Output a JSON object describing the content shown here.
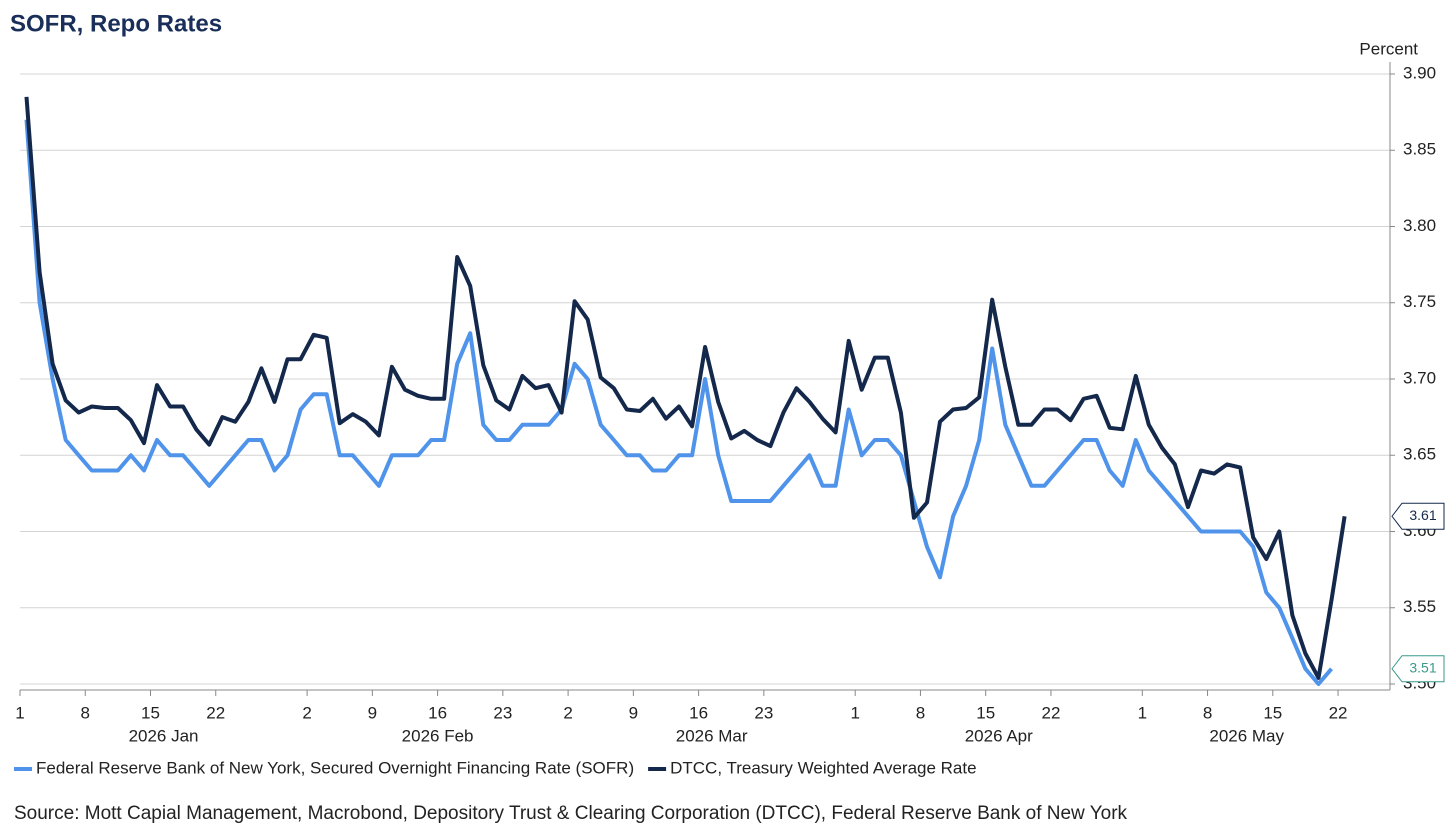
{
  "chart_data": {
    "type": "line",
    "title": "SOFR, Repo Rates",
    "y_label": "Percent",
    "source": "Source: Mott Capial Management, Macrobond, Depository Trust & Clearing Corporation (DTCC), Federal Reserve Bank of New York",
    "x": [
      "2026-01-01",
      "2026-01-02",
      "2026-01-05",
      "2026-01-06",
      "2026-01-07",
      "2026-01-08",
      "2026-01-09",
      "2026-01-12",
      "2026-01-13",
      "2026-01-14",
      "2026-01-15",
      "2026-01-16",
      "2026-01-19",
      "2026-01-20",
      "2026-01-21",
      "2026-01-22",
      "2026-01-23",
      "2026-01-26",
      "2026-01-27",
      "2026-01-28",
      "2026-01-29",
      "2026-01-30",
      "2026-02-02",
      "2026-02-03",
      "2026-02-04",
      "2026-02-05",
      "2026-02-06",
      "2026-02-09",
      "2026-02-10",
      "2026-02-11",
      "2026-02-12",
      "2026-02-13",
      "2026-02-16",
      "2026-02-17",
      "2026-02-18",
      "2026-02-19",
      "2026-02-20",
      "2026-02-23",
      "2026-02-24",
      "2026-02-25",
      "2026-02-26",
      "2026-02-27",
      "2026-03-02",
      "2026-03-03",
      "2026-03-04",
      "2026-03-05",
      "2026-03-06",
      "2026-03-09",
      "2026-03-10",
      "2026-03-11",
      "2026-03-12",
      "2026-03-13",
      "2026-03-16",
      "2026-03-17",
      "2026-03-18",
      "2026-03-19",
      "2026-03-20",
      "2026-03-23",
      "2026-03-24",
      "2026-03-25",
      "2026-03-26",
      "2026-03-27",
      "2026-03-30",
      "2026-03-31",
      "2026-04-01",
      "2026-04-02",
      "2026-04-03",
      "2026-04-06",
      "2026-04-07",
      "2026-04-08",
      "2026-04-09",
      "2026-04-10",
      "2026-04-13",
      "2026-04-14",
      "2026-04-15",
      "2026-04-16",
      "2026-04-17",
      "2026-04-20",
      "2026-04-21",
      "2026-04-22",
      "2026-04-23",
      "2026-04-24",
      "2026-04-27",
      "2026-04-28",
      "2026-04-29",
      "2026-04-30",
      "2026-05-01",
      "2026-05-04",
      "2026-05-05",
      "2026-05-06",
      "2026-05-07",
      "2026-05-08",
      "2026-05-11",
      "2026-05-12",
      "2026-05-13",
      "2026-05-14",
      "2026-05-15",
      "2026-05-18",
      "2026-05-19",
      "2026-05-20",
      "2026-05-21",
      "2026-05-22"
    ],
    "series": [
      {
        "name": "Federal Reserve Bank of New York, Secured Overnight Financing Rate (SOFR)",
        "color": "#4f94ea",
        "values": [
          3.87,
          3.75,
          3.7,
          3.66,
          3.65,
          3.64,
          3.64,
          3.64,
          3.65,
          3.64,
          3.66,
          3.65,
          3.65,
          3.64,
          3.63,
          3.64,
          3.65,
          3.66,
          3.66,
          3.64,
          3.65,
          3.68,
          3.69,
          3.69,
          3.65,
          3.65,
          3.64,
          3.63,
          3.65,
          3.65,
          3.65,
          3.66,
          3.66,
          3.71,
          3.73,
          3.67,
          3.66,
          3.66,
          3.67,
          3.67,
          3.67,
          3.68,
          3.71,
          3.7,
          3.67,
          3.66,
          3.65,
          3.65,
          3.64,
          3.64,
          3.65,
          3.65,
          3.7,
          3.65,
          3.62,
          3.62,
          3.62,
          3.62,
          3.63,
          3.64,
          3.65,
          3.63,
          3.63,
          3.68,
          3.65,
          3.66,
          3.66,
          3.65,
          3.62,
          3.59,
          3.57,
          3.61,
          3.63,
          3.66,
          3.72,
          3.67,
          3.65,
          3.63,
          3.63,
          3.64,
          3.65,
          3.66,
          3.66,
          3.64,
          3.63,
          3.66,
          3.64,
          3.63,
          3.62,
          3.61,
          3.6,
          3.6,
          3.6,
          3.6,
          3.59,
          3.56,
          3.55,
          3.53,
          3.51,
          3.5,
          3.51,
          null
        ],
        "end_label_color": "#3a9a8a"
      },
      {
        "name": "DTCC, Treasury Weighted Average Rate",
        "color": "#14284b",
        "values": [
          3.885,
          3.77,
          3.71,
          3.686,
          3.678,
          3.682,
          3.681,
          3.681,
          3.673,
          3.658,
          3.696,
          3.682,
          3.682,
          3.667,
          3.657,
          3.675,
          3.672,
          3.685,
          3.707,
          3.685,
          3.713,
          3.713,
          3.729,
          3.727,
          3.671,
          3.677,
          3.672,
          3.663,
          3.708,
          3.693,
          3.689,
          3.687,
          3.687,
          3.78,
          3.761,
          3.709,
          3.686,
          3.68,
          3.702,
          3.694,
          3.696,
          3.678,
          3.751,
          3.739,
          3.701,
          3.694,
          3.68,
          3.679,
          3.687,
          3.674,
          3.682,
          3.669,
          3.721,
          3.685,
          3.661,
          3.666,
          3.66,
          3.656,
          3.678,
          3.694,
          3.685,
          3.674,
          3.665,
          3.725,
          3.693,
          3.714,
          3.714,
          3.678,
          3.609,
          3.619,
          3.672,
          3.68,
          3.681,
          3.688,
          3.752,
          3.708,
          3.67,
          3.67,
          3.68,
          3.68,
          3.673,
          3.687,
          3.689,
          3.668,
          3.667,
          3.702,
          3.67,
          3.655,
          3.644,
          3.616,
          3.64,
          3.638,
          3.644,
          3.642,
          3.596,
          3.582,
          3.6,
          3.545,
          3.52,
          3.504,
          3.555,
          3.61
        ],
        "end_label_color": "#14284b"
      }
    ],
    "ylim": [
      3.5,
      3.9
    ],
    "yticks": [
      {
        "value": 3.9,
        "label": "3.90"
      },
      3.85,
      {
        "value": 3.8,
        "label": "3.80"
      },
      3.75,
      {
        "value": 3.7,
        "label": "3.70"
      },
      3.65,
      {
        "value": 3.6,
        "label": "3.60"
      },
      3.55,
      {
        "value": 3.5,
        "label": "3.50"
      }
    ],
    "xticks": [
      {
        "value": "2026-01-01",
        "label": "1"
      },
      {
        "value": "2026-01-08",
        "label": "8"
      },
      {
        "value": "2026-01-15",
        "label": "15"
      },
      {
        "value": "2026-01-22",
        "label": "22"
      },
      {
        "value": "2026-02-02",
        "label": "2"
      },
      {
        "value": "2026-02-09",
        "label": "9"
      },
      {
        "value": "2026-02-16",
        "label": "16"
      },
      {
        "value": "2026-02-23",
        "label": "23"
      },
      {
        "value": "2026-03-02",
        "label": "2"
      },
      {
        "value": "2026-03-09",
        "label": "9"
      },
      {
        "value": "2026-03-16",
        "label": "16"
      },
      {
        "value": "2026-03-23",
        "label": "23"
      },
      {
        "value": "2026-04-01",
        "label": "1"
      },
      {
        "value": "2026-04-08",
        "label": "8"
      },
      {
        "value": "2026-04-15",
        "label": "15"
      },
      {
        "value": "2026-04-22",
        "label": "22"
      },
      {
        "value": "2026-05-01",
        "label": "1"
      },
      {
        "value": "2026-05-08",
        "label": "8"
      },
      {
        "value": "2026-05-15",
        "label": "15"
      },
      {
        "value": "2026-05-22",
        "label": "22"
      }
    ],
    "month_labels": [
      {
        "value": "2026-01",
        "label": "2026 Jan"
      },
      {
        "value": "2026-02",
        "label": "2026 Feb"
      },
      {
        "value": "2026-03",
        "label": "2026 Mar"
      },
      {
        "value": "2026-04",
        "label": "2026 Apr"
      },
      {
        "value": "2026-05",
        "label": "2026 May"
      }
    ],
    "grid": true,
    "legend": "bottom"
  }
}
